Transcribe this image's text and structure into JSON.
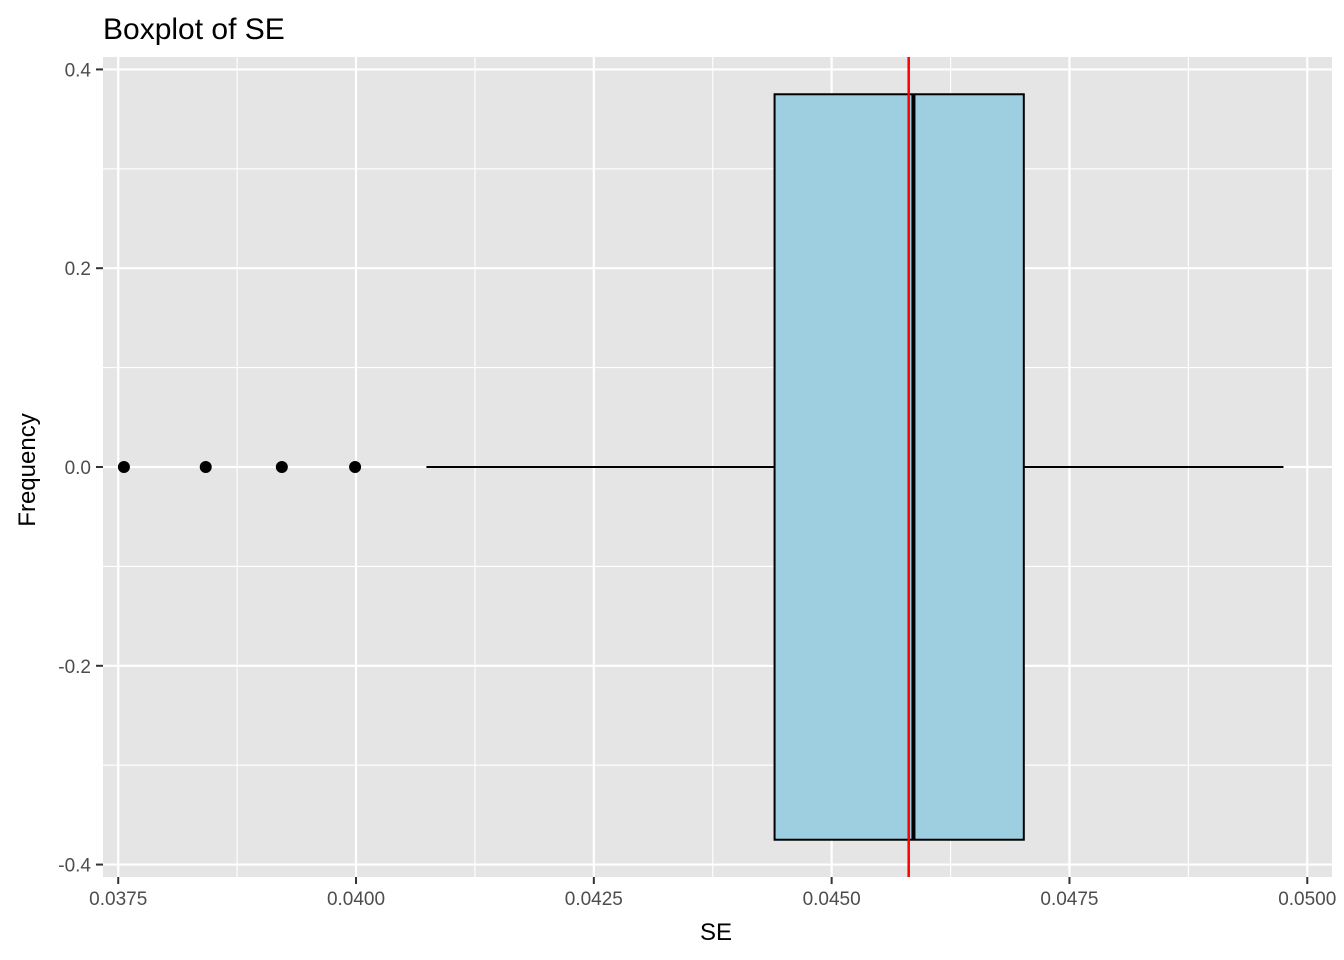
{
  "chart_data": {
    "type": "boxplot",
    "title": "Boxplot of SE",
    "xlabel": "SE",
    "ylabel": "Frequency",
    "xlim": [
      0.03734,
      0.05026
    ],
    "ylim": [
      -0.4125,
      0.4125
    ],
    "x_ticks": [
      0.0375,
      0.04,
      0.0425,
      0.045,
      0.0475,
      0.05
    ],
    "x_tick_labels": [
      "0.0375",
      "0.0400",
      "0.0425",
      "0.0450",
      "0.0475",
      "0.0500"
    ],
    "y_ticks": [
      -0.4,
      -0.2,
      0.0,
      0.2,
      0.4
    ],
    "y_tick_labels": [
      "-0.4",
      "-0.2",
      "0.0",
      "0.2",
      "0.4"
    ],
    "grid": true,
    "box": {
      "whisker_low": 0.04074,
      "q1": 0.0444,
      "median": 0.04586,
      "q3": 0.04702,
      "whisker_high": 0.04975,
      "ymin": -0.375,
      "ymax": 0.375,
      "fill": "#9ecfe0",
      "stroke": "#000000"
    },
    "outliers": [
      0.03756,
      0.03842,
      0.03922,
      0.03999
    ],
    "vline": {
      "x": 0.04581,
      "color": "#ff0000"
    },
    "panel_background": "#e5e5e5",
    "grid_color": "#ffffff"
  }
}
